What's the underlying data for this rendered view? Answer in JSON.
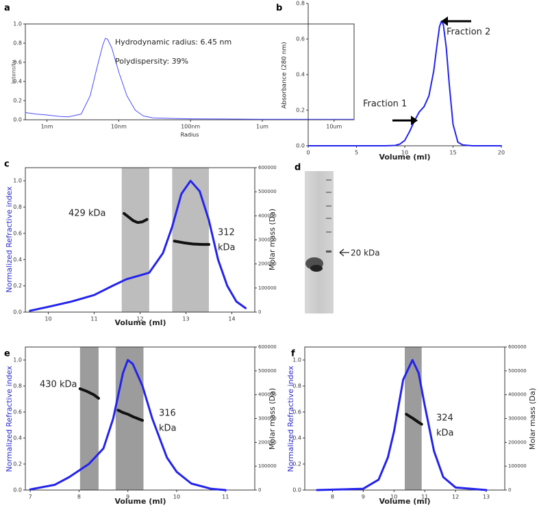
{
  "chart_data": [
    {
      "type": "line",
      "panel": "a",
      "xlabel": "Radius",
      "ylabel": "Intensity",
      "xscale": "log",
      "xlim": [
        0.5,
        19000
      ],
      "ylim": [
        0,
        1
      ],
      "xticks": [
        {
          "value": 1,
          "label": "1nm"
        },
        {
          "value": 10,
          "label": "10nm"
        },
        {
          "value": 100,
          "label": "100nm"
        },
        {
          "value": 1000,
          "label": "1um"
        },
        {
          "value": 10000,
          "label": "10um"
        }
      ],
      "yticks": [
        {
          "value": 0,
          "label": "0.0"
        },
        0.2,
        0.4,
        0.6,
        0.8,
        {
          "value": 1,
          "label": "1.0"
        }
      ],
      "series": [
        {
          "name": null,
          "color": "#4a4aff",
          "x": [
            0.5,
            0.7,
            1,
            1.5,
            2,
            3,
            4,
            5,
            6,
            6.5,
            7,
            8,
            10,
            13,
            17,
            22,
            30,
            50,
            100,
            300,
            1000,
            3000,
            19000
          ],
          "values": [
            0.075,
            0.06,
            0.05,
            0.035,
            0.03,
            0.06,
            0.25,
            0.55,
            0.78,
            0.85,
            0.84,
            0.75,
            0.5,
            0.25,
            0.1,
            0.04,
            0.02,
            0.015,
            0.01,
            0.008,
            0.005,
            0.005,
            0.005
          ]
        }
      ],
      "annotations": [
        {
          "text": "Hydrodynamic radius: 6.45 nm"
        },
        {
          "text": "Polydispersity: 39%"
        }
      ]
    },
    {
      "type": "line",
      "panel": "b",
      "xlabel": "Volume (ml)",
      "ylabel": "Absorbance (280 nm)",
      "xlim": [
        0,
        20
      ],
      "ylim": [
        0,
        0.8
      ],
      "xticks": [
        0,
        5,
        10,
        15,
        20
      ],
      "yticks": [
        {
          "value": 0,
          "label": "0.0"
        },
        0.2,
        0.4,
        0.6,
        0.8
      ],
      "series": [
        {
          "name": null,
          "color": "#2222ee",
          "x": [
            0,
            8,
            9,
            9.5,
            10,
            10.5,
            11,
            11.5,
            12,
            12.5,
            13,
            13.3,
            13.6,
            13.8,
            14,
            14.3,
            14.6,
            15,
            15.5,
            16,
            17,
            20
          ],
          "values": [
            0,
            0,
            0.002,
            0.01,
            0.03,
            0.08,
            0.14,
            0.19,
            0.22,
            0.28,
            0.42,
            0.55,
            0.67,
            0.7,
            0.68,
            0.55,
            0.35,
            0.12,
            0.02,
            0.005,
            0,
            0
          ]
        }
      ],
      "annotations": [
        {
          "text": "Fraction 1"
        },
        {
          "text": "Fraction 2"
        }
      ]
    },
    {
      "type": "line",
      "panel": "c",
      "xlabel": "Volume (ml)",
      "ylabel": "Normalized Refractive index",
      "y2label": "Molar mass (Da)",
      "xlim": [
        9.5,
        14.5
      ],
      "ylim": [
        0,
        1.1
      ],
      "y2lim": [
        0,
        600000
      ],
      "xticks": [
        10,
        11,
        12,
        13,
        14
      ],
      "yticks": [
        {
          "value": 0,
          "label": "0.0"
        },
        0.2,
        0.4,
        0.6,
        0.8,
        {
          "value": 1,
          "label": "1.0"
        }
      ],
      "y2ticks": [
        0,
        100000,
        200000,
        300000,
        400000,
        500000,
        600000
      ],
      "shaded_ranges": [
        [
          11.6,
          12.2
        ],
        [
          12.7,
          13.5
        ]
      ],
      "series": [
        {
          "name": null,
          "color": "#2222ee",
          "x": [
            9.6,
            10,
            10.5,
            11,
            11.4,
            11.7,
            12,
            12.2,
            12.5,
            12.7,
            12.9,
            13.1,
            13.3,
            13.5,
            13.7,
            13.9,
            14.1,
            14.3
          ],
          "values": [
            0.01,
            0.04,
            0.08,
            0.13,
            0.2,
            0.25,
            0.28,
            0.3,
            0.45,
            0.65,
            0.9,
            1.0,
            0.92,
            0.7,
            0.4,
            0.2,
            0.08,
            0.03
          ]
        },
        {
          "name": null,
          "color": "#111111",
          "axis": "y2",
          "x": [
            11.65,
            11.75,
            11.85,
            11.95,
            12.05,
            12.15,
            12.4,
            12.75,
            12.95,
            13.15,
            13.35,
            13.5
          ],
          "values": [
            410000,
            395000,
            380000,
            372000,
            375000,
            385000,
            null,
            295000,
            288000,
            283000,
            281000,
            281000
          ]
        }
      ],
      "annotations": [
        {
          "text": "429 kDa"
        },
        {
          "lines": [
            "312",
            "kDa"
          ]
        }
      ]
    },
    {
      "type": "image",
      "panel": "d",
      "annotations": [
        {
          "text": "20 kDa"
        }
      ]
    },
    {
      "type": "line",
      "panel": "e",
      "xlabel": "Volume (ml)",
      "ylabel": "Normalized Refractive index",
      "y2label": "Molar mass (Da)",
      "xlim": [
        6.9,
        11.6
      ],
      "ylim": [
        0,
        1.1
      ],
      "y2lim": [
        0,
        600000
      ],
      "xticks": [
        7,
        8,
        9,
        10,
        11
      ],
      "yticks": [
        {
          "value": 0,
          "label": "0.0"
        },
        0.2,
        0.4,
        0.6,
        0.8,
        {
          "value": 1,
          "label": "1.0"
        }
      ],
      "y2ticks": [
        0,
        100000,
        200000,
        300000,
        400000,
        500000,
        600000
      ],
      "shaded_ranges": [
        [
          8.02,
          8.4
        ],
        [
          8.75,
          9.32
        ]
      ],
      "series": [
        {
          "name": null,
          "color": "#2222ee",
          "x": [
            7,
            7.5,
            7.8,
            8.2,
            8.5,
            8.7,
            8.9,
            9.0,
            9.1,
            9.3,
            9.5,
            9.8,
            10,
            10.3,
            10.7,
            11
          ],
          "values": [
            0.005,
            0.04,
            0.1,
            0.2,
            0.32,
            0.55,
            0.9,
            1.0,
            0.97,
            0.8,
            0.55,
            0.25,
            0.14,
            0.05,
            0.01,
            0
          ]
        },
        {
          "name": null,
          "color": "#111111",
          "axis": "y2",
          "x": [
            8.02,
            8.15,
            8.3,
            8.4,
            8.6,
            8.8,
            8.9,
            9.0,
            9.1,
            9.2,
            9.3
          ],
          "values": [
            425000,
            415000,
            400000,
            385000,
            null,
            335000,
            325000,
            318000,
            308000,
            300000,
            292000
          ]
        }
      ],
      "annotations": [
        {
          "text": "430 kDa"
        },
        {
          "lines": [
            "316",
            "kDa"
          ]
        }
      ]
    },
    {
      "type": "line",
      "panel": "f",
      "xlabel": "Volume (ml)",
      "ylabel": "Normalized Refractive index",
      "y2label": "Molar mass (Da)",
      "xlim": [
        7.1,
        13.6
      ],
      "ylim": [
        0,
        1.1
      ],
      "y2lim": [
        0,
        600000
      ],
      "xticks": [
        8,
        9,
        10,
        11,
        12,
        13
      ],
      "yticks": [
        {
          "value": 0,
          "label": "0.0"
        },
        0.2,
        0.4,
        0.6,
        0.8,
        {
          "value": 1,
          "label": "1.0"
        }
      ],
      "y2ticks": [
        0,
        100000,
        200000,
        300000,
        400000,
        500000,
        600000
      ],
      "shaded_ranges": [
        [
          10.35,
          10.9
        ]
      ],
      "series": [
        {
          "name": null,
          "color": "#2222ee",
          "x": [
            7.5,
            9,
            9.5,
            9.8,
            10,
            10.3,
            10.6,
            10.8,
            11,
            11.3,
            11.6,
            12,
            13
          ],
          "values": [
            0,
            0.01,
            0.08,
            0.25,
            0.45,
            0.85,
            1.0,
            0.9,
            0.65,
            0.3,
            0.1,
            0.02,
            0
          ]
        },
        {
          "name": null,
          "color": "#111111",
          "axis": "y2",
          "x": [
            10.4,
            10.5,
            10.6,
            10.7,
            10.8,
            10.9
          ],
          "values": [
            318000,
            310000,
            302000,
            293000,
            284000,
            276000
          ]
        }
      ],
      "annotations": [
        {
          "lines": [
            "324",
            "kDa"
          ]
        }
      ]
    }
  ]
}
